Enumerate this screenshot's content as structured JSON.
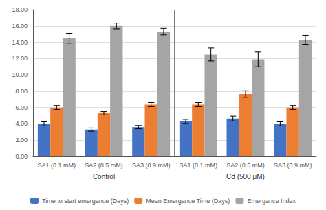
{
  "chart_data": {
    "type": "bar",
    "categories": [
      "SA1 (0.1 mM)",
      "SA2 (0.5 mM)",
      "SA3 (0.9 mM)",
      "SA1 (0.1 mM)",
      "SA2 (0.5 mM)",
      "SA3 (0.9 mM)"
    ],
    "annotations": [
      "Control",
      "Cd (500 μM)"
    ],
    "series": [
      {
        "name": "Time to start emergance (Days)",
        "color": "#4472C4",
        "values": [
          4.0,
          3.3,
          3.6,
          4.3,
          4.65,
          4.0
        ],
        "errors": [
          0.25,
          0.2,
          0.2,
          0.25,
          0.3,
          0.25
        ]
      },
      {
        "name": "Mean Emergance Time (Days)",
        "color": "#ED7D31",
        "values": [
          6.0,
          5.3,
          6.35,
          6.35,
          7.65,
          6.0
        ],
        "errors": [
          0.25,
          0.2,
          0.25,
          0.25,
          0.4,
          0.25
        ]
      },
      {
        "name": "Emergance Index",
        "color": "#A5A5A5",
        "values": [
          14.5,
          16.0,
          15.3,
          12.5,
          11.9,
          14.3
        ],
        "errors": [
          0.6,
          0.35,
          0.4,
          0.8,
          0.9,
          0.55
        ]
      }
    ],
    "ylim": [
      0,
      18.0
    ],
    "yticks": [
      {
        "value": 0.0,
        "label": "0.00"
      },
      {
        "value": 2.0,
        "label": "2.00"
      },
      {
        "value": 4.0,
        "label": "4.00"
      },
      {
        "value": 6.0,
        "label": "6.00"
      },
      {
        "value": 8.0,
        "label": "8.00"
      },
      {
        "value": 10.0,
        "label": "10.00"
      },
      {
        "value": 12.0,
        "label": "12.00"
      },
      {
        "value": 14.0,
        "label": "14.00"
      },
      {
        "value": 16.0,
        "label": "16.00"
      },
      {
        "value": 18.0,
        "label": "18.00"
      }
    ],
    "grid": true,
    "legend": "bottom"
  }
}
